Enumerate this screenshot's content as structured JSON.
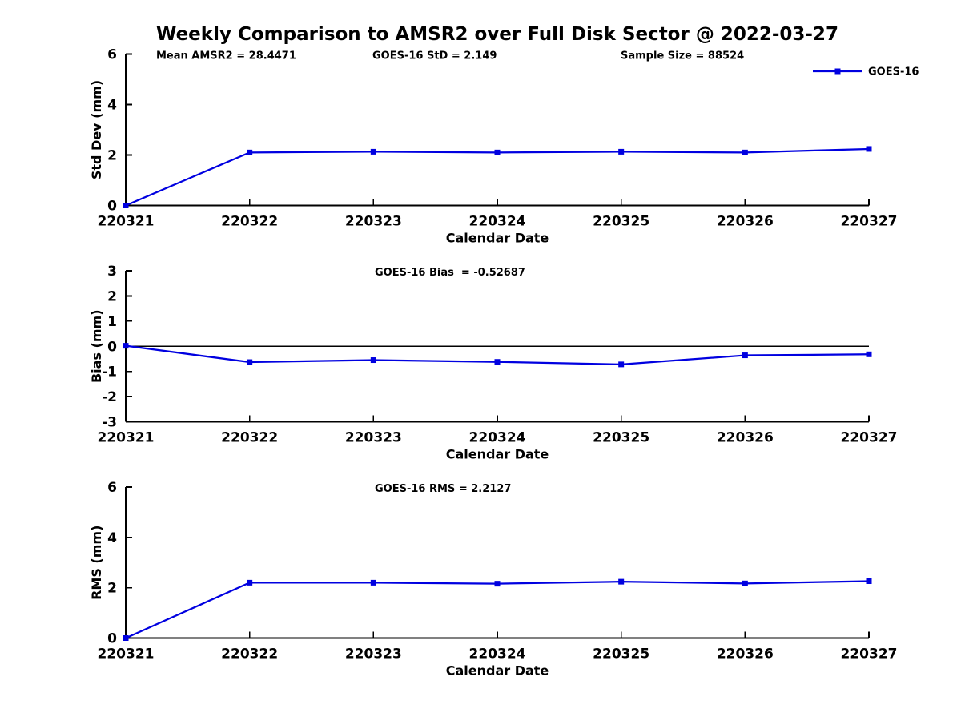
{
  "title": "Weekly Comparison to AMSR2 over Full Disk Sector @ 2022-03-27",
  "colors": {
    "line": "#0000E0",
    "axis": "#000000",
    "text": "#000000",
    "background": "#ffffff"
  },
  "chart_data": [
    {
      "type": "line",
      "name": "std-dev",
      "categories": [
        "220321",
        "220322",
        "220323",
        "220324",
        "220325",
        "220326",
        "220327"
      ],
      "series": [
        {
          "name": "GOES-16",
          "values": [
            0,
            2.1,
            2.13,
            2.1,
            2.13,
            2.1,
            2.24
          ]
        }
      ],
      "annotations": [
        "Mean AMSR2 = 28.4471",
        "GOES-16 StD = 2.149",
        "Sample Size = 88524"
      ],
      "xlabel": "Calendar Date",
      "ylabel": "Std Dev (mm)",
      "ylim": [
        0,
        6
      ],
      "yticks": [
        0,
        2,
        4,
        6
      ],
      "legend": {
        "show": true,
        "label": "GOES-16",
        "position": "top-right"
      },
      "zero_line": false,
      "grid": false,
      "marker": "square"
    },
    {
      "type": "line",
      "name": "bias",
      "categories": [
        "220321",
        "220322",
        "220323",
        "220324",
        "220325",
        "220326",
        "220327"
      ],
      "series": [
        {
          "name": "GOES-16",
          "values": [
            0.02,
            -0.63,
            -0.55,
            -0.62,
            -0.72,
            -0.36,
            -0.32
          ]
        }
      ],
      "annotations": [
        "GOES-16 Bias  = -0.52687"
      ],
      "xlabel": "Calendar Date",
      "ylabel": "Bias (mm)",
      "ylim": [
        -3,
        3
      ],
      "yticks": [
        -3,
        -2,
        -1,
        0,
        1,
        2,
        3
      ],
      "legend": {
        "show": false
      },
      "zero_line": true,
      "grid": false,
      "marker": "square"
    },
    {
      "type": "line",
      "name": "rms",
      "categories": [
        "220321",
        "220322",
        "220323",
        "220324",
        "220325",
        "220326",
        "220327"
      ],
      "series": [
        {
          "name": "GOES-16",
          "values": [
            0,
            2.2,
            2.2,
            2.16,
            2.24,
            2.17,
            2.26
          ]
        }
      ],
      "annotations": [
        "GOES-16 RMS = 2.2127"
      ],
      "xlabel": "Calendar Date",
      "ylabel": "RMS (mm)",
      "ylim": [
        0,
        6
      ],
      "yticks": [
        0,
        2,
        4,
        6
      ],
      "legend": {
        "show": false
      },
      "zero_line": false,
      "grid": false,
      "marker": "square"
    }
  ]
}
